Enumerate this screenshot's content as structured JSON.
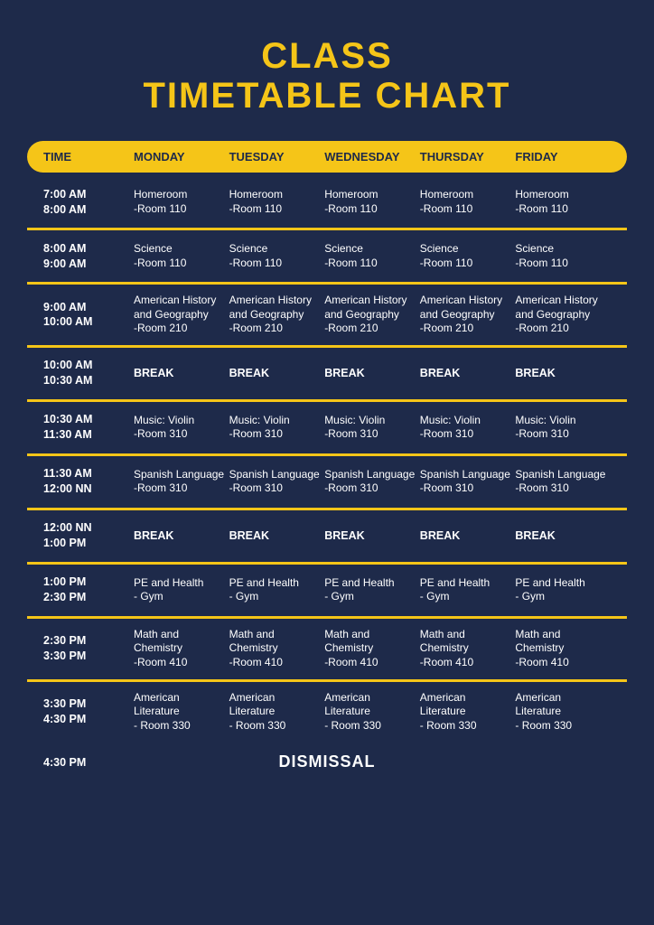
{
  "colors": {
    "background": "#1e2a4a",
    "accent": "#f5c518",
    "text": "#ffffff",
    "header_text": "#1e2a4a"
  },
  "title_line1": "CLASS",
  "title_line2": "TIMETABLE CHART",
  "headers": {
    "time": "TIME",
    "d0": "MONDAY",
    "d1": "TUESDAY",
    "d2": "WEDNESDAY",
    "d3": "THURSDAY",
    "d4": "FRIDAY"
  },
  "rows": [
    {
      "time": "7:00 AM\n8:00 AM",
      "cells": [
        "Homeroom\n-Room 110",
        "Homeroom\n-Room 110",
        "Homeroom\n-Room 110",
        "Homeroom\n-Room 110",
        "Homeroom\n-Room 110"
      ],
      "bold": false
    },
    {
      "time": "8:00 AM\n9:00 AM",
      "cells": [
        "Science\n-Room 110",
        "Science\n-Room 110",
        "Science\n-Room 110",
        "Science\n-Room 110",
        "Science\n-Room 110"
      ],
      "bold": false
    },
    {
      "time": "9:00 AM\n10:00 AM",
      "cells": [
        "American History and Geography\n-Room 210",
        "American History and Geography\n-Room 210",
        "American History and Geography\n-Room 210",
        "American History and Geography\n-Room 210",
        "American History and Geography\n-Room 210"
      ],
      "bold": false
    },
    {
      "time": "10:00 AM\n10:30 AM",
      "cells": [
        "BREAK",
        "BREAK",
        "BREAK",
        "BREAK",
        "BREAK"
      ],
      "bold": true
    },
    {
      "time": "10:30 AM\n11:30 AM",
      "cells": [
        "Music: Violin\n-Room 310",
        "Music: Violin\n-Room 310",
        "Music: Violin\n-Room 310",
        "Music: Violin\n-Room 310",
        "Music: Violin\n-Room 310"
      ],
      "bold": false
    },
    {
      "time": "11:30 AM\n12:00 NN",
      "cells": [
        "Spanish Language\n-Room 310",
        "Spanish Language\n-Room 310",
        "Spanish Language\n-Room 310",
        "Spanish Language\n-Room 310",
        "Spanish Language\n-Room 310"
      ],
      "bold": false
    },
    {
      "time": "12:00 NN\n1:00 PM",
      "cells": [
        "BREAK",
        "BREAK",
        "BREAK",
        "BREAK",
        "BREAK"
      ],
      "bold": true
    },
    {
      "time": "1:00 PM\n2:30 PM",
      "cells": [
        "PE and Health\n- Gym",
        "PE and Health\n- Gym",
        "PE and Health\n- Gym",
        "PE and Health\n- Gym",
        "PE and Health\n- Gym"
      ],
      "bold": false
    },
    {
      "time": "2:30 PM\n3:30 PM",
      "cells": [
        "Math and Chemistry\n-Room 410",
        "Math and Chemistry\n-Room 410",
        "Math and Chemistry\n-Room 410",
        "Math and Chemistry\n-Room 410",
        "Math and Chemistry\n-Room 410"
      ],
      "bold": false
    },
    {
      "time": "3:30 PM\n4:30 PM",
      "cells": [
        "American Literature\n- Room 330",
        "American Literature\n- Room 330",
        "American Literature\n- Room 330",
        "American Literature\n- Room 330",
        "American Literature\n- Room 330"
      ],
      "bold": false
    }
  ],
  "dismissal": {
    "time": "4:30 PM",
    "label": "DISMISSAL"
  }
}
